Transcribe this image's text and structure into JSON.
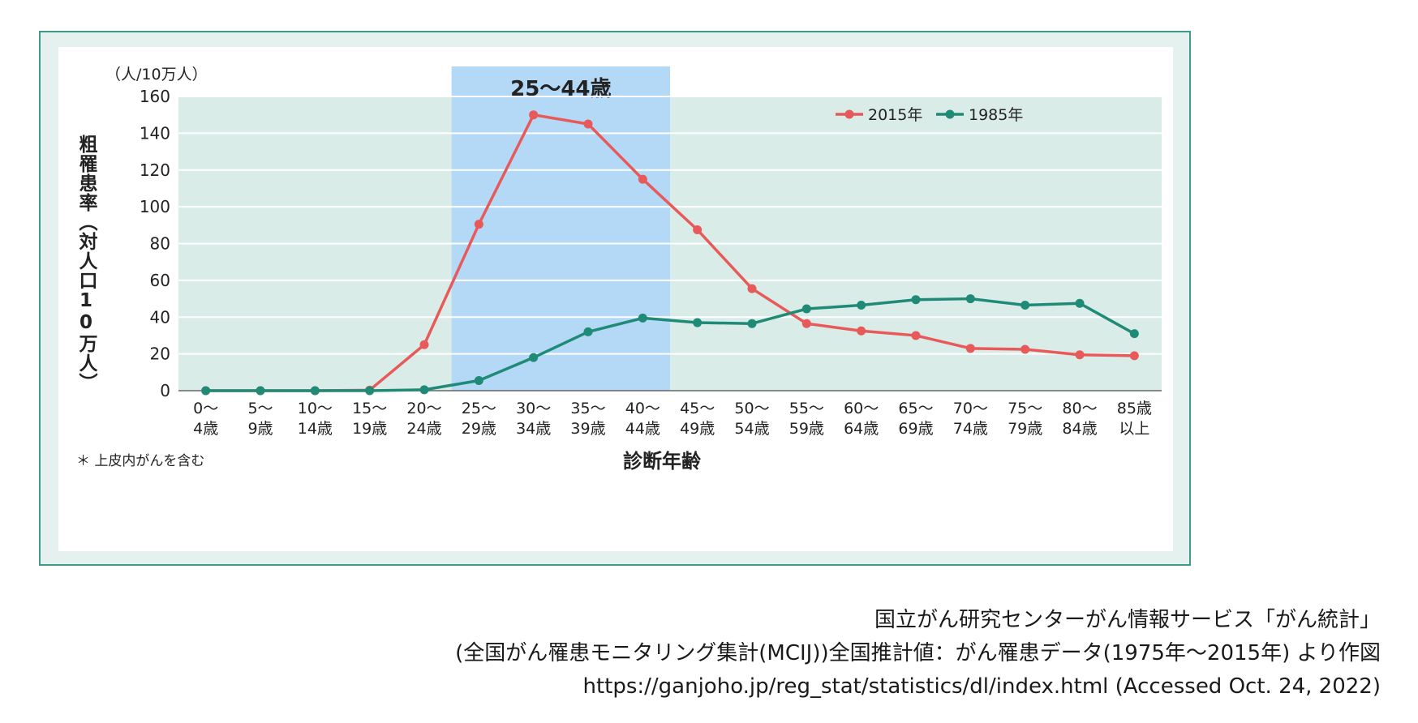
{
  "chart_data": {
    "type": "line",
    "title": "",
    "unit_label": "（人/10万人）",
    "ylabel": "粗罹患率（対人口10万人）",
    "xlabel": "診断年齢",
    "footnote": "＊ 上皮内がんを含む",
    "highlight": {
      "label": "25～44歳",
      "from_index": 5,
      "to_index": 8
    },
    "ylim": [
      0,
      160
    ],
    "yticks": [
      0,
      20,
      40,
      60,
      80,
      100,
      120,
      140,
      160
    ],
    "grid": true,
    "legend_position": "top-right",
    "categories": [
      [
        "0～",
        "4歳"
      ],
      [
        "5～",
        "9歳"
      ],
      [
        "10～",
        "14歳"
      ],
      [
        "15～",
        "19歳"
      ],
      [
        "20～",
        "24歳"
      ],
      [
        "25～",
        "29歳"
      ],
      [
        "30～",
        "34歳"
      ],
      [
        "35～",
        "39歳"
      ],
      [
        "40～",
        "44歳"
      ],
      [
        "45～",
        "49歳"
      ],
      [
        "50～",
        "54歳"
      ],
      [
        "55～",
        "59歳"
      ],
      [
        "60～",
        "64歳"
      ],
      [
        "65～",
        "69歳"
      ],
      [
        "70～",
        "74歳"
      ],
      [
        "75～",
        "79歳"
      ],
      [
        "80～",
        "84歳"
      ],
      [
        "85歳",
        "以上"
      ]
    ],
    "series": [
      {
        "name": "2015年",
        "color": "#e85a5a",
        "values": [
          0,
          0,
          0,
          0.3,
          25,
          90.5,
          150,
          145,
          115,
          87.5,
          55.5,
          36.5,
          32.5,
          30,
          23,
          22.5,
          19.5,
          19
        ]
      },
      {
        "name": "1985年",
        "color": "#1f8a76",
        "values": [
          0,
          0,
          0,
          0,
          0.5,
          5.5,
          18,
          32,
          39.5,
          37,
          36.5,
          44.5,
          46.5,
          49.5,
          50,
          46.5,
          47.5,
          31
        ]
      }
    ]
  },
  "credits": [
    "国立がん研究センターがん情報サービス「がん統計」",
    "(全国がん罹患モニタリング集計(MCIJ))全国推計値：がん罹患データ(1975年～2015年) より作図",
    "https://ganjoho.jp/reg_stat/statistics/dl/index.html (Accessed Oct. 24, 2022)"
  ],
  "colors": {
    "frame_border": "#3f9a8a",
    "frame_fill": "#e4f1ef",
    "plot_fill": "#d9ece8",
    "highlight_fill": "#b3d9f7"
  }
}
